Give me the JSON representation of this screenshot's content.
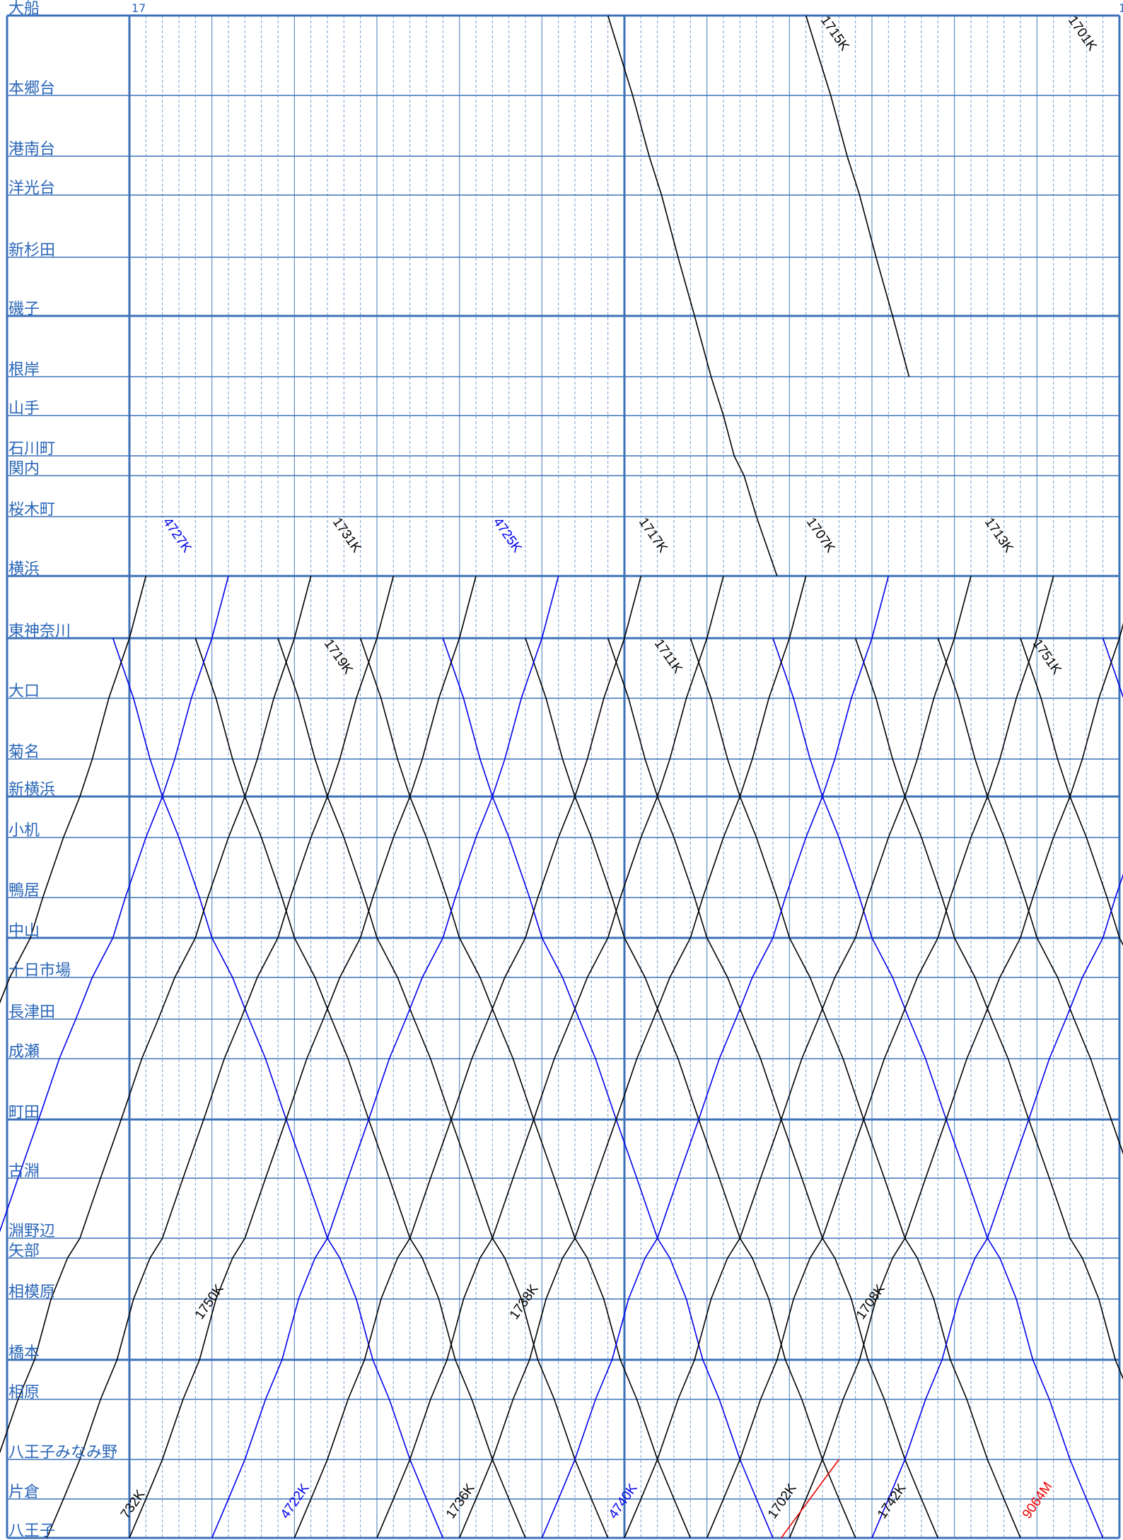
{
  "header": {
    "start_hour": "17",
    "end_hour": "1"
  },
  "stations": [
    {
      "name": "大船",
      "major": true
    },
    {
      "name": "本郷台",
      "major": false
    },
    {
      "name": "港南台",
      "major": false
    },
    {
      "name": "洋光台",
      "major": false
    },
    {
      "name": "新杉田",
      "major": false
    },
    {
      "name": "磯子",
      "major": true
    },
    {
      "name": "根岸",
      "major": false
    },
    {
      "name": "山手",
      "major": false
    },
    {
      "name": "石川町",
      "major": false
    },
    {
      "name": "関内",
      "major": false
    },
    {
      "name": "桜木町",
      "major": false
    },
    {
      "name": "横浜",
      "major": true
    },
    {
      "name": "東神奈川",
      "major": true
    },
    {
      "name": "大口",
      "major": false
    },
    {
      "name": "菊名",
      "major": false
    },
    {
      "name": "新横浜",
      "major": true
    },
    {
      "name": "小机",
      "major": false
    },
    {
      "name": "鴨居",
      "major": false
    },
    {
      "name": "中山",
      "major": true
    },
    {
      "name": "十日市場",
      "major": false
    },
    {
      "name": "長津田",
      "major": false
    },
    {
      "name": "成瀬",
      "major": false
    },
    {
      "name": "町田",
      "major": true
    },
    {
      "name": "古淵",
      "major": false
    },
    {
      "name": "淵野辺",
      "major": false
    },
    {
      "name": "矢部",
      "major": false
    },
    {
      "name": "相模原",
      "major": false
    },
    {
      "name": "橋本",
      "major": true
    },
    {
      "name": "相原",
      "major": false
    },
    {
      "name": "八王子みなみ野",
      "major": false
    },
    {
      "name": "片倉",
      "major": false
    },
    {
      "name": "八王子",
      "major": true
    }
  ],
  "colors": {
    "grid": "#3d72b8",
    "local": "#000000",
    "rapid": "#0000ee",
    "special": "#ee0000",
    "label": "#2a66b8"
  },
  "train_labels": [
    {
      "text": "1715K",
      "color": "local"
    },
    {
      "text": "1701K",
      "color": "local"
    },
    {
      "text": "4727K",
      "color": "rapid"
    },
    {
      "text": "1731K",
      "color": "local"
    },
    {
      "text": "4725K",
      "color": "rapid"
    },
    {
      "text": "1717K",
      "color": "local"
    },
    {
      "text": "1707K",
      "color": "local"
    },
    {
      "text": "1713K",
      "color": "local"
    },
    {
      "text": "1719K",
      "color": "local"
    },
    {
      "text": "1711K",
      "color": "local"
    },
    {
      "text": "1751K",
      "color": "local"
    },
    {
      "text": "1750K",
      "color": "local"
    },
    {
      "text": "1738K",
      "color": "local"
    },
    {
      "text": "1708K",
      "color": "local"
    },
    {
      "text": "732K",
      "color": "local"
    },
    {
      "text": "4722K",
      "color": "rapid"
    },
    {
      "text": "1736K",
      "color": "local"
    },
    {
      "text": "4740K",
      "color": "rapid"
    },
    {
      "text": "1702K",
      "color": "local"
    },
    {
      "text": "1742K",
      "color": "local"
    },
    {
      "text": "9064M",
      "color": "special"
    }
  ]
}
